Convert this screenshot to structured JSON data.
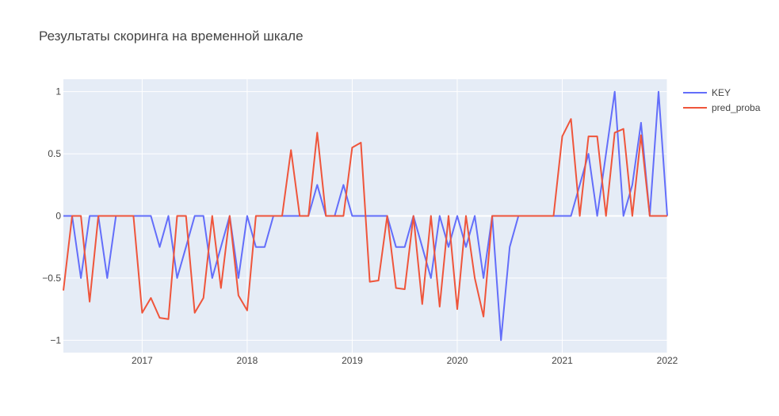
{
  "chart_data": {
    "type": "line",
    "title": "Результаты скоринга на временной шкале",
    "xlabel": "",
    "ylabel": "",
    "xlim": [
      2016.25,
      2022.0
    ],
    "ylim": [
      -1.1,
      1.1
    ],
    "x_ticks": [
      {
        "value": 2017,
        "label": "2017"
      },
      {
        "value": 2018,
        "label": "2018"
      },
      {
        "value": 2019,
        "label": "2019"
      },
      {
        "value": 2020,
        "label": "2020"
      },
      {
        "value": 2021,
        "label": "2021"
      },
      {
        "value": 2022,
        "label": "2022"
      }
    ],
    "y_ticks": [
      {
        "value": 1,
        "label": "1"
      },
      {
        "value": 0.5,
        "label": "0.5"
      },
      {
        "value": 0,
        "label": "0"
      },
      {
        "value": -0.5,
        "label": "−0.5"
      },
      {
        "value": -1,
        "label": "−1"
      }
    ],
    "grid": true,
    "legend_position": "top-right",
    "colors": {
      "plot_bg": "#E5ECF6",
      "grid": "#ffffff"
    },
    "x": [
      2016.25,
      2016.333,
      2016.417,
      2016.5,
      2016.583,
      2016.667,
      2016.75,
      2016.833,
      2016.917,
      2017.0,
      2017.083,
      2017.167,
      2017.25,
      2017.333,
      2017.417,
      2017.5,
      2017.583,
      2017.667,
      2017.75,
      2017.833,
      2017.917,
      2018.0,
      2018.083,
      2018.167,
      2018.25,
      2018.333,
      2018.417,
      2018.5,
      2018.583,
      2018.667,
      2018.75,
      2018.833,
      2018.917,
      2019.0,
      2019.083,
      2019.167,
      2019.25,
      2019.333,
      2019.417,
      2019.5,
      2019.583,
      2019.667,
      2019.75,
      2019.833,
      2019.917,
      2020.0,
      2020.083,
      2020.167,
      2020.25,
      2020.333,
      2020.417,
      2020.5,
      2020.583,
      2020.667,
      2020.75,
      2020.833,
      2020.917,
      2021.0,
      2021.083,
      2021.167,
      2021.25,
      2021.333,
      2021.417,
      2021.5,
      2021.583,
      2021.667,
      2021.75,
      2021.833,
      2021.917,
      2022.0
    ],
    "series": [
      {
        "name": "KEY",
        "color": "#636EFA",
        "values": [
          0,
          0,
          -0.5,
          0,
          0,
          -0.5,
          0,
          0,
          0,
          0,
          0,
          -0.25,
          0,
          -0.5,
          -0.25,
          0,
          0,
          -0.5,
          -0.25,
          0,
          -0.5,
          0,
          -0.25,
          -0.25,
          0,
          0,
          0,
          0,
          0,
          0.25,
          0,
          0,
          0.25,
          0,
          0,
          0,
          0,
          0,
          -0.25,
          -0.25,
          0,
          -0.25,
          -0.5,
          0,
          -0.25,
          0,
          -0.25,
          0,
          -0.5,
          0,
          -1,
          -0.25,
          0,
          0,
          0,
          0,
          0,
          0,
          0,
          0.25,
          0.5,
          0,
          0.5,
          1,
          0,
          0.25,
          0.75,
          0,
          1,
          0
        ]
      },
      {
        "name": "pred_proba",
        "color": "#EF553B",
        "values": [
          -0.6,
          0,
          0,
          -0.69,
          0,
          0,
          0,
          0,
          0,
          -0.78,
          -0.66,
          -0.82,
          -0.83,
          0,
          0,
          -0.78,
          -0.66,
          0,
          -0.58,
          0,
          -0.64,
          -0.76,
          0,
          0,
          0,
          0,
          0.53,
          0,
          0,
          0.67,
          0,
          0,
          0,
          0.55,
          0.59,
          -0.53,
          -0.52,
          0,
          -0.58,
          -0.59,
          0,
          -0.71,
          0,
          -0.73,
          0,
          -0.75,
          0,
          -0.5,
          -0.81,
          0,
          0,
          0,
          0,
          0,
          0,
          0,
          0,
          0.64,
          0.78,
          0,
          0.64,
          0.64,
          0,
          0.67,
          0.7,
          0,
          0.65,
          0,
          0,
          0
        ]
      }
    ]
  }
}
